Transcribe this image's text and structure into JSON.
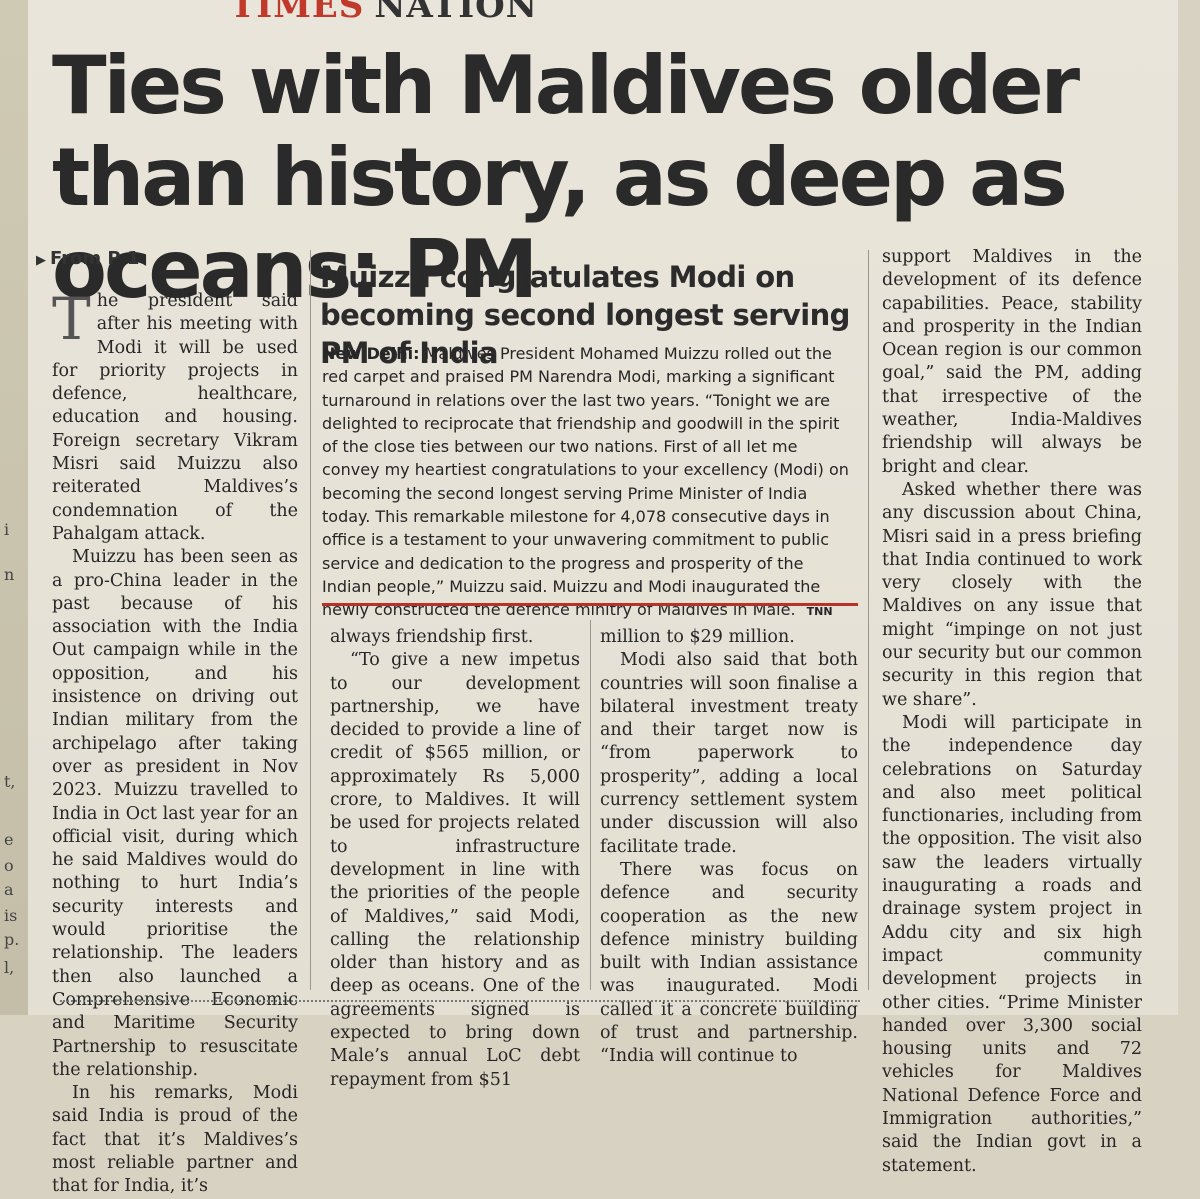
{
  "section": {
    "times": "TIMES",
    "nation": "NATION"
  },
  "headline": "Ties with Maldives older than history, as deep as oceans: PM",
  "from_ref": "From P 1",
  "left_strip": [
    "i",
    "n",
    "t,",
    "e",
    "o",
    "a",
    "is",
    "p.",
    "l,"
  ],
  "sidebar": {
    "headline": "Muizzu congratulates Modi on becoming second longest serving PM of India",
    "dateline": "New Delhi:",
    "body": "Maldives President Mohamed Muizzu rolled out the red carpet and praised PM Narendra Modi, marking a significant turnaround in relations over the last two years. “Tonight we are delighted to reciprocate that friendship and goodwill in the spirit of the close ties between our two nations. First of all let me convey my heartiest congratulations to your excellency (Modi) on becoming the second longest serving Prime Minister of India today. This remarkable milestone for 4,078 consecutive days in office is a testament to your unwavering commitment to public service and dedication to the progress and prosperity of the Indian people,” Muizzu said. Muizzu and Modi inaugurated the newly constructed the defence minitry of Maldives in Male.",
    "credit": "TNN"
  },
  "columns": {
    "col1": {
      "dropcap": "T",
      "p1": "he president said after his meeting with Modi it will be used for priority projects in defence, healthcare, education and housing. Foreign secretary Vikram Misri said Muizzu also reiterated Maldives’s condemnation of the Pahalgam attack.",
      "p2": "Muizzu has been seen as a pro-China leader in the past because of his association with the India Out campaign while in the opposition, and his insistence on driving out Indian military from the archipelago after taking over as president in Nov 2023. Muizzu travelled to India in Oct last year for an official visit, during which he said Maldives would do nothing to hurt India’s security interests and would prioritise the relationship. The leaders then also launched a Comprehensive Economic and Maritime Security Partnership to resuscitate the relationship.",
      "p3": "In his remarks, Modi said India is proud of the fact that it’s Maldives’s most reliable partner and that for India, it’s"
    },
    "col2": {
      "p1": "always friendship first.",
      "p2": "“To give a new impetus to our development partnership, we have decided to provide a line of credit of $565 million, or approximately Rs 5,000 crore, to Maldives. It will be used for projects related to infrastructure development in line with the priorities of the people of Maldives,” said Modi, calling the relationship older than history and as deep as oceans. One of the agreements signed is expected to bring down Male’s annual LoC debt repayment from $51"
    },
    "col3": {
      "p1": "million to $29 million.",
      "p2": "Modi also said that both countries will soon finalise a bilateral investment treaty and their target now is “from paperwork to prosperity”, adding a local currency settlement system under discussion will also facilitate trade.",
      "p3": "There was focus on defence and security cooperation as the new defence ministry building built with Indian assistance was inaugurated. Modi called it a concrete building of trust and partnership. “India will continue to"
    },
    "col4": {
      "p1": "support Maldives in the development of its defence capabilities. Peace, stability and prosperity in the Indian Ocean region is our common goal,” said the PM, adding that irrespective of the weather, India-Maldives friendship will always be bright and clear.",
      "p2": "Asked whether there was any discussion about China, Misri said in a press briefing that India continued to work very closely with the Maldives on any issue that might “impinge on not just our security but our common security in this region that we share”.",
      "p3": "Modi will participate in the independence day celebrations on Saturday and also meet political functionaries, including from the opposition. The visit also saw the leaders virtually inaugurating a roads and drainage system project in Addu city and six high impact community development projects in other cities. “Prime Minister handed over 3,300 social housing units and 72 vehicles for Maldives National Defence Force and Immigration authorities,” said the Indian govt in a statement."
    }
  }
}
